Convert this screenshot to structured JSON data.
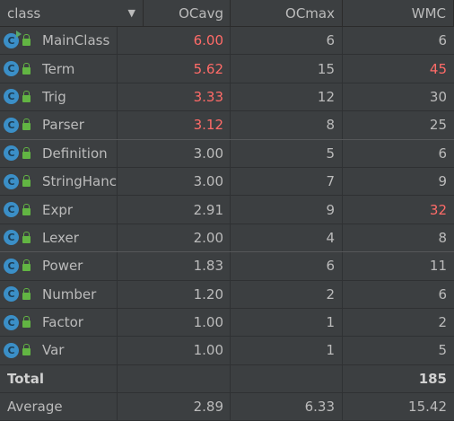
{
  "header": {
    "class": "class",
    "ocavg": "OCavg",
    "ocmax": "OCmax",
    "wmc": "WMC"
  },
  "colors": {
    "background": "#3c3f41",
    "text": "#bbbbbb",
    "warning": "#ff6b68",
    "class_icon": "#3b8fc7",
    "lock_icon": "#62b543"
  },
  "rows": [
    {
      "name": "MainClass",
      "ocavg": "6.00",
      "ocmax": "6",
      "wmc": "6",
      "ocavg_warn": true,
      "wmc_warn": false,
      "runnable": true
    },
    {
      "name": "Term",
      "ocavg": "5.62",
      "ocmax": "15",
      "wmc": "45",
      "ocavg_warn": true,
      "wmc_warn": true
    },
    {
      "name": "Trig",
      "ocavg": "3.33",
      "ocmax": "12",
      "wmc": "30",
      "ocavg_warn": true,
      "wmc_warn": false
    },
    {
      "name": "Parser",
      "ocavg": "3.12",
      "ocmax": "8",
      "wmc": "25",
      "ocavg_warn": true,
      "wmc_warn": false
    },
    {
      "name": "Definition",
      "ocavg": "3.00",
      "ocmax": "5",
      "wmc": "6"
    },
    {
      "name": "StringHanc",
      "ocavg": "3.00",
      "ocmax": "7",
      "wmc": "9"
    },
    {
      "name": "Expr",
      "ocavg": "2.91",
      "ocmax": "9",
      "wmc": "32",
      "wmc_warn": true
    },
    {
      "name": "Lexer",
      "ocavg": "2.00",
      "ocmax": "4",
      "wmc": "8"
    },
    {
      "name": "Power",
      "ocavg": "1.83",
      "ocmax": "6",
      "wmc": "11"
    },
    {
      "name": "Number",
      "ocavg": "1.20",
      "ocmax": "2",
      "wmc": "6"
    },
    {
      "name": "Factor",
      "ocavg": "1.00",
      "ocmax": "1",
      "wmc": "2"
    },
    {
      "name": "Var",
      "ocavg": "1.00",
      "ocmax": "1",
      "wmc": "5"
    }
  ],
  "total": {
    "label": "Total",
    "ocavg": "",
    "ocmax": "",
    "wmc": "185"
  },
  "average": {
    "label": "Average",
    "ocavg": "2.89",
    "ocmax": "6.33",
    "wmc": "15.42"
  },
  "icons": {
    "class": "class-icon",
    "lock": "lock-icon",
    "sort": "sort-down-icon"
  },
  "class_icon_letter": "C"
}
